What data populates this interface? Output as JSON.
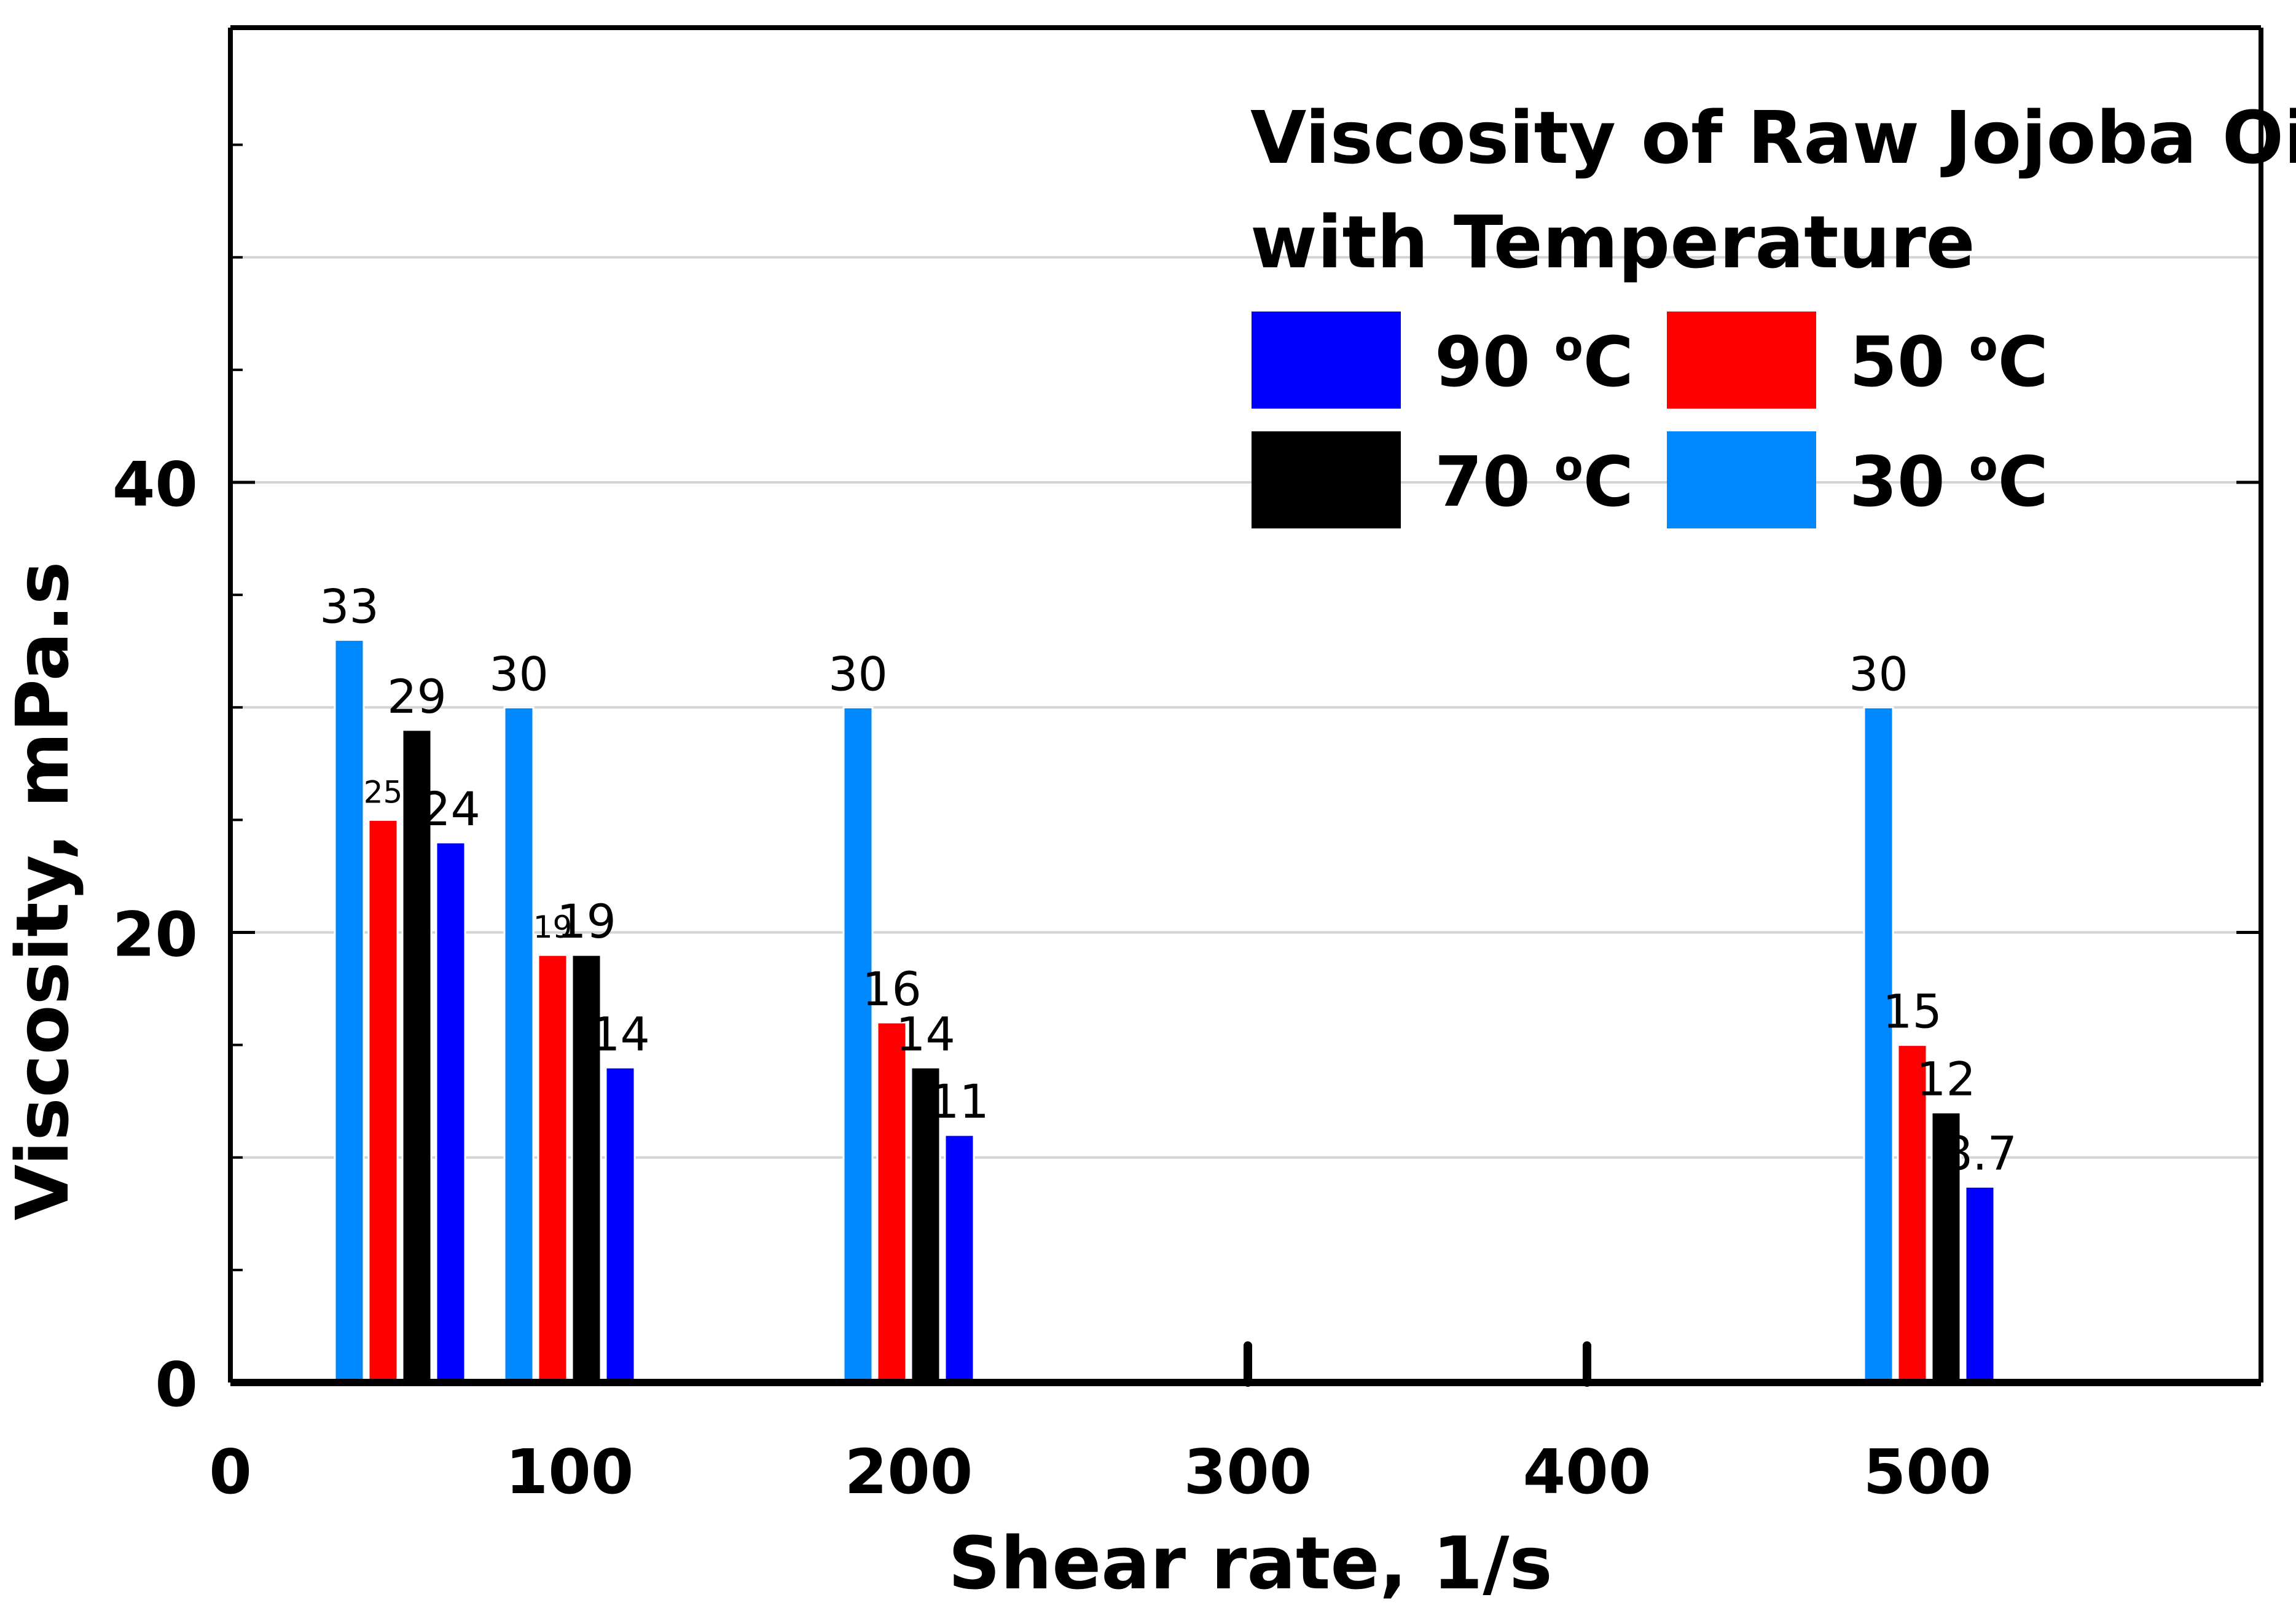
{
  "chart_data": {
    "type": "bar",
    "title_line1": "Viscosity of Raw Jojoba Oil",
    "title_line2": "with Temperature",
    "xlabel": "Shear rate, 1/s",
    "ylabel": "Viscosity, mPa.s",
    "ylim": [
      0,
      60
    ],
    "y_ticks": [
      {
        "value": 0,
        "label": "0"
      },
      {
        "value": 20,
        "label": "20"
      },
      {
        "value": 40,
        "label": "40"
      }
    ],
    "y_minor_ticks": [
      5,
      10,
      15,
      25,
      30,
      35,
      45,
      50,
      55
    ],
    "grid": true,
    "x_tick_labels": [
      "0",
      "100",
      "200",
      "300",
      "400",
      "500"
    ],
    "legend_position": "top-right",
    "categories": [
      "50",
      "100",
      "200",
      "500"
    ],
    "series": [
      {
        "name": "30 °C",
        "legend_label": "30",
        "color": "#0088ff",
        "values": [
          33,
          30,
          30,
          30
        ],
        "labels": [
          "33",
          "30",
          "30",
          "30"
        ]
      },
      {
        "name": "50 °C",
        "legend_label": "50",
        "color": "#ff0000",
        "values": [
          25,
          19,
          16,
          15
        ],
        "labels": [
          "25",
          "19",
          "16",
          "15"
        ]
      },
      {
        "name": "70 °C",
        "legend_label": "70",
        "color": "#000000",
        "values": [
          29,
          19,
          14,
          12
        ],
        "labels": [
          "29",
          "19",
          "14",
          "12"
        ]
      },
      {
        "name": "90 °C",
        "legend_label": "90",
        "color": "#0000ff",
        "values": [
          24,
          14,
          11,
          8.7
        ],
        "labels": [
          "24",
          "14",
          "11",
          "8.7"
        ]
      }
    ],
    "legend_order": [
      "90 °C",
      "50 °C",
      "70 °C",
      "30 °C"
    ],
    "unit_superscript": "o",
    "unit_letter": "C"
  }
}
